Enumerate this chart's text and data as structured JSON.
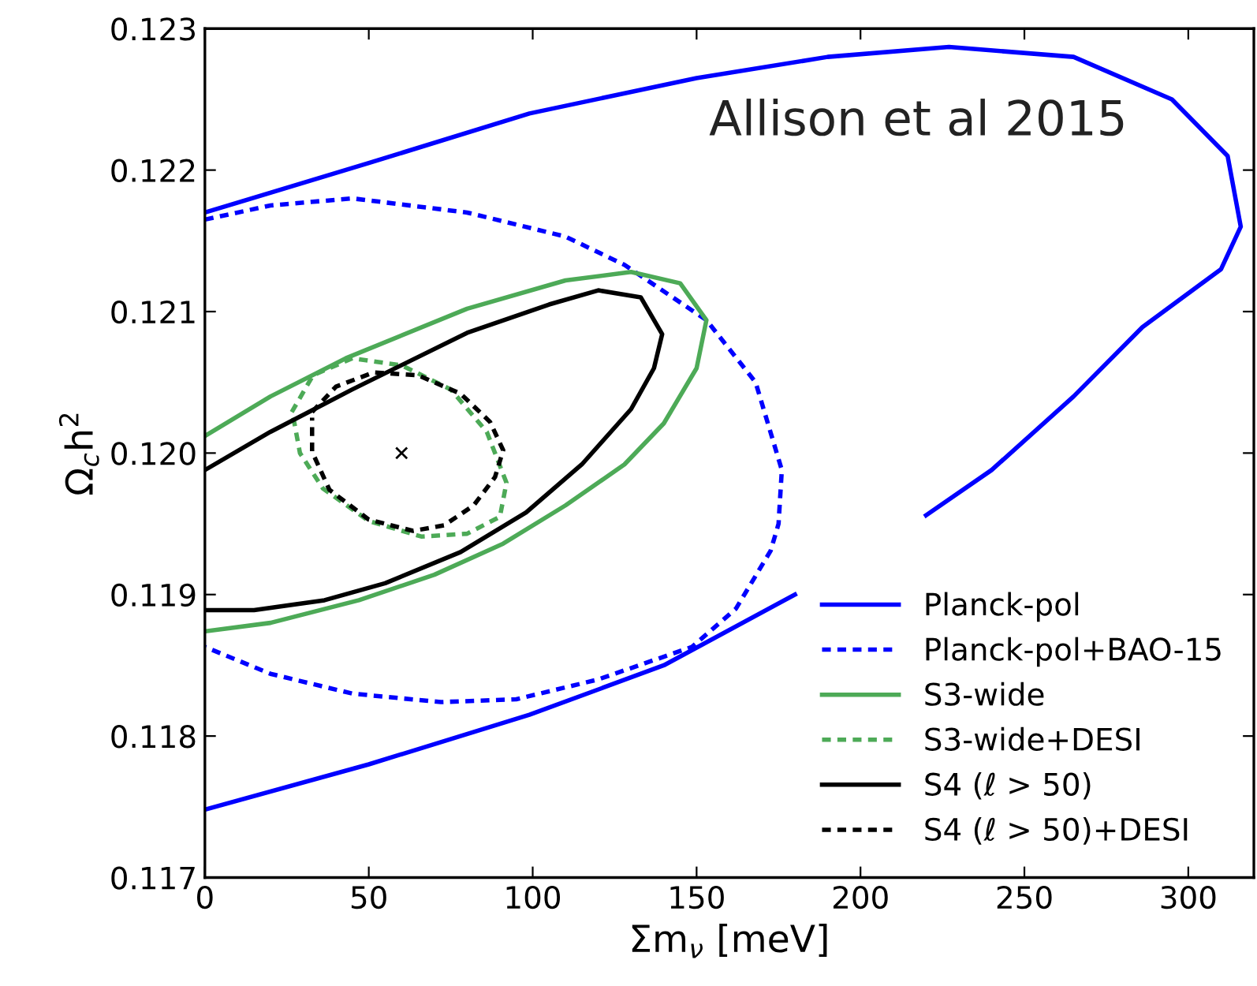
{
  "chart_data": {
    "type": "line",
    "xlabel": "Σm$_{ν}$ [meV]",
    "ylabel": "Ω$_{c}$h$^{2}$",
    "annotations": [
      "Allison et al 2015"
    ],
    "xlim": [
      0,
      320
    ],
    "xticks": [
      0,
      50,
      100,
      150,
      200,
      250,
      300
    ],
    "ylim": [
      0.117,
      0.123
    ],
    "yticks": [
      {
        "value": 0.117,
        "label": "0.117"
      },
      {
        "value": 0.118,
        "label": "0.118"
      },
      {
        "value": 0.119,
        "label": "0.119"
      },
      {
        "value": 0.12,
        "label": "0.120"
      },
      {
        "value": 0.121,
        "label": "0.121"
      },
      {
        "value": 0.122,
        "label": "0.122"
      },
      {
        "value": 0.123,
        "label": "0.123"
      }
    ],
    "grid": false,
    "legend": "bottom right",
    "marker": "none",
    "series": [
      {
        "name": "Planck-pol",
        "color": "#0000ff",
        "line_style": "solid",
        "x": [
          0,
          50,
          99,
          150,
          190,
          227,
          265,
          295,
          312,
          316,
          310,
          286,
          265,
          240,
          220,
          null,
          180,
          140,
          99,
          50,
          0
        ],
        "values": [
          0.1217,
          0.12205,
          0.1224,
          0.12265,
          0.1228,
          0.12287,
          0.1228,
          0.1225,
          0.1221,
          0.1216,
          0.1213,
          0.12089,
          0.1204,
          0.11988,
          0.11956,
          null,
          0.119,
          0.1185,
          0.11815,
          0.1178,
          0.11748
        ]
      },
      {
        "name": "Planck-pol+BAO-15",
        "color": "#0000ff",
        "line_style": "dashed",
        "x": [
          0,
          20,
          45,
          80,
          110,
          128,
          153,
          168,
          176,
          175,
          172.6,
          162,
          148.6,
          120,
          95,
          72,
          45,
          20,
          0
        ],
        "values": [
          0.12165,
          0.12175,
          0.1218,
          0.1217,
          0.12153,
          0.12133,
          0.12094,
          0.1205,
          0.11988,
          0.1195,
          0.11931,
          0.1189,
          0.11863,
          0.1184,
          0.11826,
          0.11824,
          0.1183,
          0.11844,
          0.11863
        ]
      },
      {
        "name": "S3-wide",
        "color": "#4daa57",
        "line_style": "solid",
        "x": [
          0,
          20,
          43,
          80,
          110,
          130,
          145,
          153,
          150,
          140,
          128,
          110,
          91,
          70,
          47,
          20,
          0
        ],
        "values": [
          0.12012,
          0.1204,
          0.12067,
          0.12102,
          0.12122,
          0.12128,
          0.1212,
          0.12094,
          0.1206,
          0.12021,
          0.11992,
          0.11963,
          0.11936,
          0.11914,
          0.11896,
          0.1188,
          0.11874
        ]
      },
      {
        "name": "S3-wide+DESI",
        "color": "#4daa57",
        "line_style": "dashed",
        "x": [
          26.5,
          33,
          45,
          60,
          75,
          86,
          92,
          90,
          80,
          66,
          50,
          36,
          29,
          27
        ],
        "values": [
          0.12029,
          0.12055,
          0.12067,
          0.12062,
          0.12045,
          0.12015,
          0.11979,
          0.11955,
          0.11943,
          0.11941,
          0.11952,
          0.11975,
          0.12,
          0.12025
        ]
      },
      {
        "name": "S4 (ℓ > 50)",
        "color": "#000000",
        "line_style": "solid",
        "x": [
          0,
          20,
          45,
          80,
          105,
          120,
          133,
          139.5,
          137,
          130,
          115,
          98,
          78,
          55,
          36.5,
          15,
          0
        ],
        "values": [
          0.11988,
          0.12015,
          0.12045,
          0.12085,
          0.12105,
          0.12115,
          0.1211,
          0.12084,
          0.1206,
          0.12031,
          0.11992,
          0.11958,
          0.1193,
          0.11908,
          0.11896,
          0.11889,
          0.11889
        ]
      },
      {
        "name": "S4 (ℓ > 50)+DESI",
        "color": "#000000",
        "line_style": "dashed",
        "x": [
          32.7,
          40,
          51.5,
          65,
          78,
          87,
          91,
          88.5,
          82,
          73,
          63.5,
          50,
          38,
          32.7,
          32.7
        ],
        "values": [
          0.12029,
          0.12047,
          0.12057,
          0.12055,
          0.12042,
          0.12022,
          0.12002,
          0.11983,
          0.11963,
          0.11949,
          0.11945,
          0.11953,
          0.11974,
          0.12001,
          0.12025
        ]
      },
      {
        "type": "scatter",
        "marker": "cross",
        "color": "#000000",
        "x": [
          60
        ],
        "values": [
          0.12
        ]
      }
    ]
  }
}
